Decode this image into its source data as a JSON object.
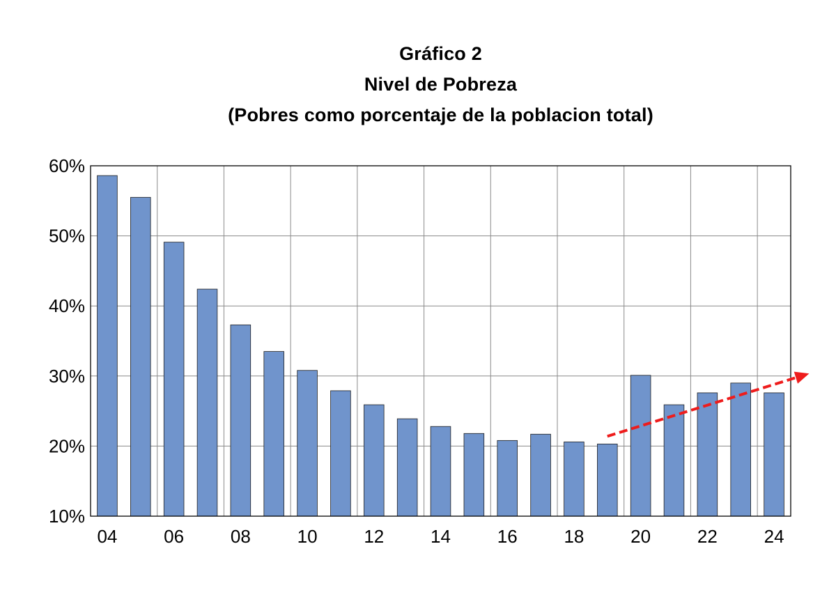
{
  "chart_data": {
    "type": "bar",
    "title": "Gráfico 2",
    "subtitle": "Nivel de Pobreza",
    "subtitle2": "(Pobres como porcentaje de la poblacion total)",
    "xlabel": "",
    "ylabel": "",
    "categories": [
      "04",
      "05",
      "06",
      "07",
      "08",
      "09",
      "10",
      "11",
      "12",
      "13",
      "14",
      "15",
      "16",
      "17",
      "18",
      "19",
      "20",
      "21",
      "22",
      "23",
      "24"
    ],
    "x_tick_labels": [
      "04",
      "06",
      "08",
      "10",
      "12",
      "14",
      "16",
      "18",
      "20",
      "22",
      "24"
    ],
    "y_ticks": [
      10,
      20,
      30,
      40,
      50,
      60
    ],
    "y_tick_labels": [
      "10%",
      "20%",
      "30%",
      "40%",
      "50%",
      "60%"
    ],
    "ylim": [
      10,
      60
    ],
    "grid": true,
    "legend": "none",
    "series": [
      {
        "values": [
          58.6,
          55.5,
          49.1,
          42.4,
          37.3,
          33.5,
          30.8,
          27.9,
          25.9,
          23.9,
          22.8,
          21.8,
          20.8,
          21.7,
          20.6,
          20.3,
          30.1,
          25.9,
          27.6,
          29.0,
          27.6
        ],
        "color": "#7094cc"
      }
    ],
    "annotations": [
      {
        "type": "trend-arrow",
        "from_category": "19",
        "from_value": 21.4,
        "to_category": "24+",
        "to_value": 30.0,
        "color": "#ee1c1c",
        "style": "dashed"
      }
    ]
  }
}
